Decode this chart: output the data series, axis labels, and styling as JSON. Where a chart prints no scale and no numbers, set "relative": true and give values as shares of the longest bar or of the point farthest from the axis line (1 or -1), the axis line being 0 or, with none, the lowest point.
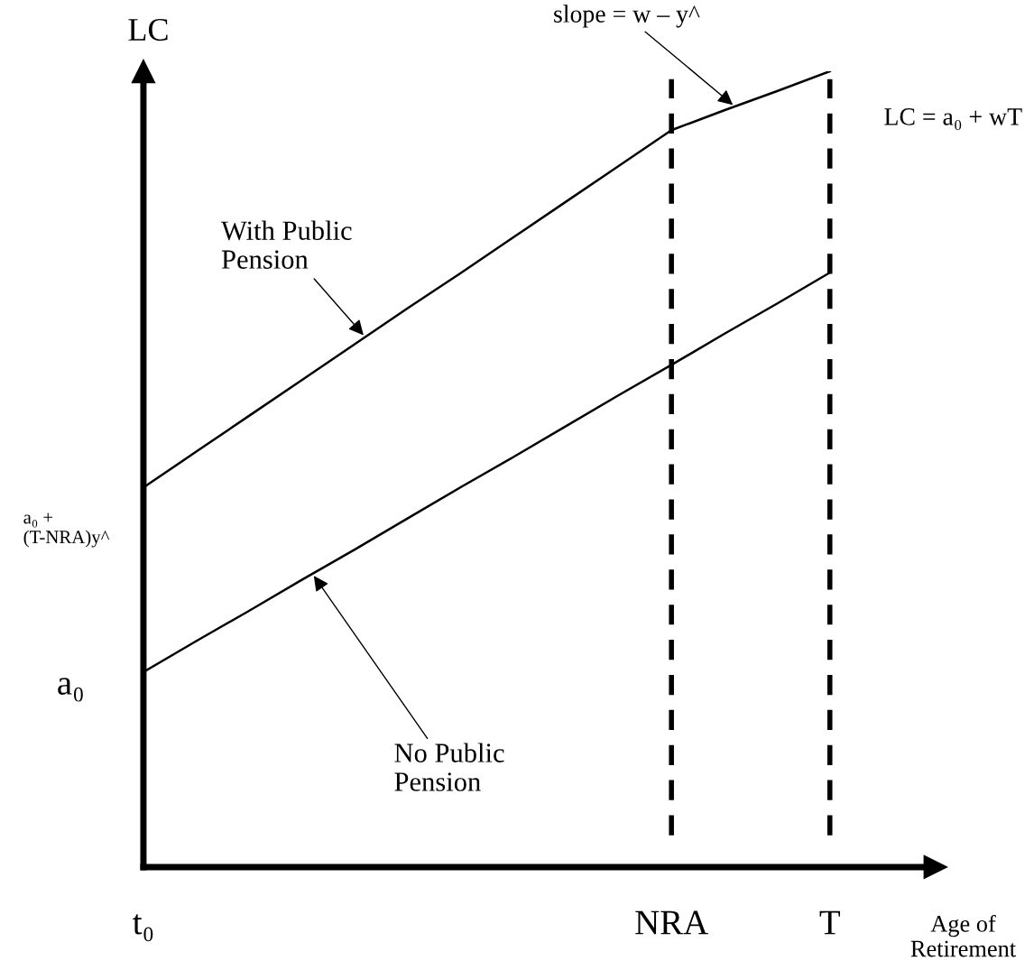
{
  "chart_data": {
    "type": "line",
    "relative": true,
    "xlabel": "Age of\nRetirement",
    "ylabel": "LC",
    "categories": [
      "t₀",
      null,
      null,
      null,
      null,
      null,
      null,
      null,
      null,
      null,
      "NRA",
      null,
      null,
      "T"
    ],
    "series": [
      {
        "name": "With Public\nPension",
        "color": "#000000",
        "values": [
          0.477,
          0.522,
          0.567,
          0.612,
          0.657,
          0.702,
          0.746,
          0.791,
          0.836,
          0.881,
          0.926,
          0.951,
          0.975,
          1.0
        ]
      },
      {
        "name": "No Public\nPension",
        "color": "#000000",
        "values": [
          0.245,
          0.284,
          0.322,
          0.361,
          0.399,
          0.438,
          0.477,
          0.515,
          0.554,
          0.593,
          0.631,
          0.67,
          0.708,
          0.747
        ]
      }
    ],
    "ref_lines": [
      {
        "axis": "x",
        "value": "NRA",
        "line_style": "dashed",
        "color": "#000000"
      },
      {
        "axis": "x",
        "value": "T",
        "line_style": "dashed",
        "color": "#000000"
      }
    ],
    "annotations": [
      "slope = w – y^",
      "LC = a₀ + wT",
      {
        "text": "a₀ +\n(T-NRA)y^",
        "x": "t₀",
        "y": 0.477
      },
      {
        "text": "a₀",
        "x": "t₀",
        "y": 0.245
      }
    ],
    "grid": false,
    "legend": false,
    "marker": "none",
    "line_style": "solid"
  }
}
